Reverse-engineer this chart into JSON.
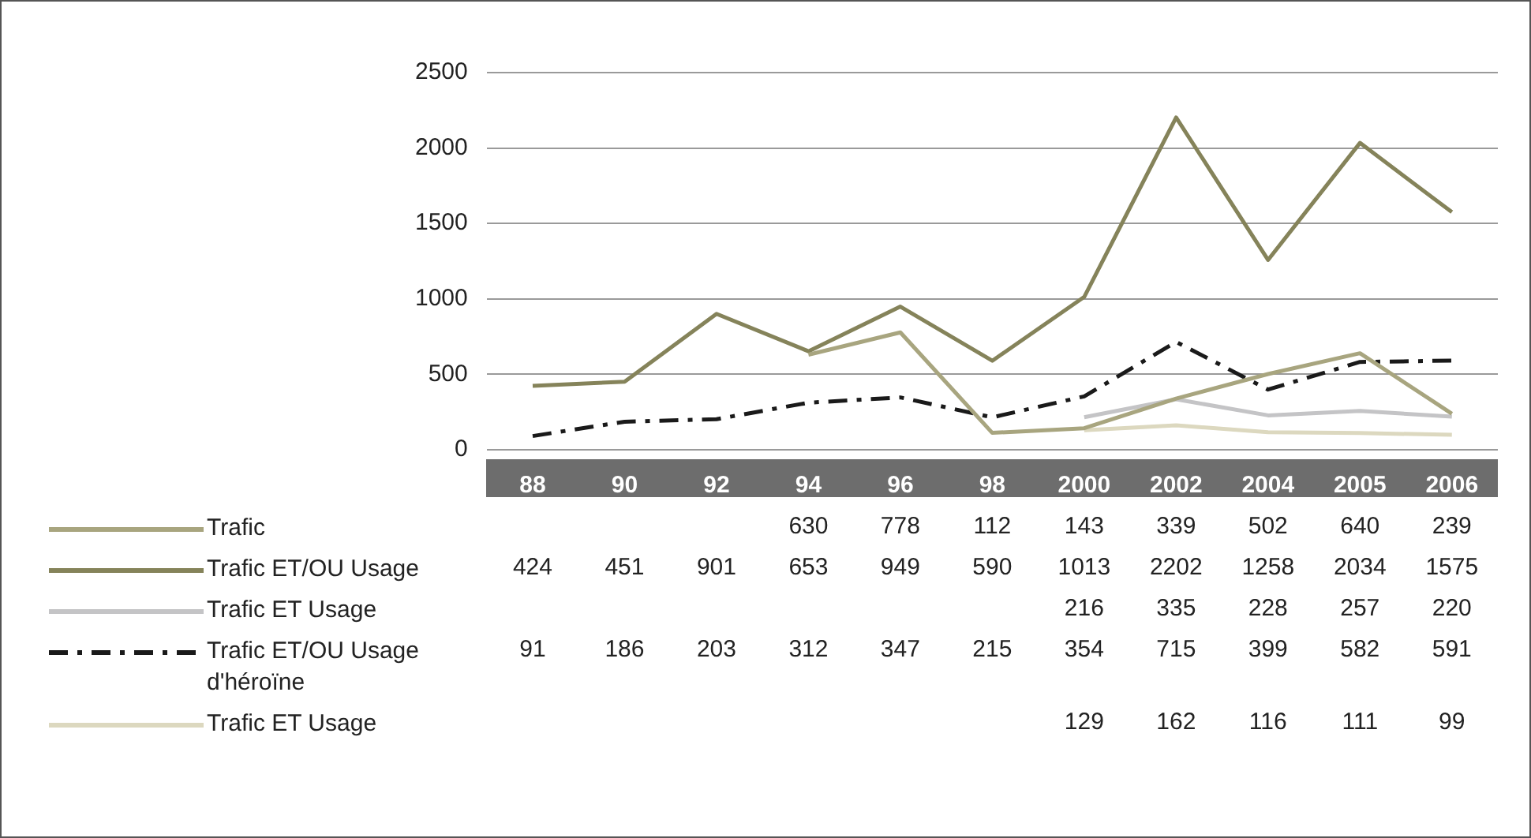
{
  "chart_data": {
    "type": "line",
    "categories": [
      "88",
      "90",
      "92",
      "94",
      "96",
      "98",
      "2000",
      "2002",
      "2004",
      "2005",
      "2006"
    ],
    "series": [
      {
        "name": "Trafic",
        "color": "#a8a57f",
        "values": [
          null,
          null,
          null,
          630,
          778,
          112,
          143,
          339,
          502,
          640,
          239
        ]
      },
      {
        "name": "Trafic ET/OU Usage",
        "color": "#85835a",
        "values": [
          424,
          451,
          901,
          653,
          949,
          590,
          1013,
          2202,
          1258,
          2034,
          1575
        ]
      },
      {
        "name": "Trafic ET Usage",
        "color": "#c4c4c6",
        "values": [
          null,
          null,
          null,
          null,
          null,
          null,
          216,
          335,
          228,
          257,
          220
        ]
      },
      {
        "name": "Trafic ET/OU Usage d'héroïne",
        "color": "#1a1a1a",
        "line_style": "dashed",
        "values": [
          91,
          186,
          203,
          312,
          347,
          215,
          354,
          715,
          399,
          582,
          591
        ]
      },
      {
        "name": "Trafic ET Usage",
        "color": "#dcd8bf",
        "values": [
          null,
          null,
          null,
          null,
          null,
          null,
          129,
          162,
          116,
          111,
          99
        ]
      }
    ],
    "ylim": [
      0,
      2500
    ],
    "yticks": [
      0,
      500,
      1000,
      1500,
      2000,
      2500
    ],
    "grid": "y",
    "legend": "bottom left",
    "data_labels": true,
    "marker": "none"
  }
}
